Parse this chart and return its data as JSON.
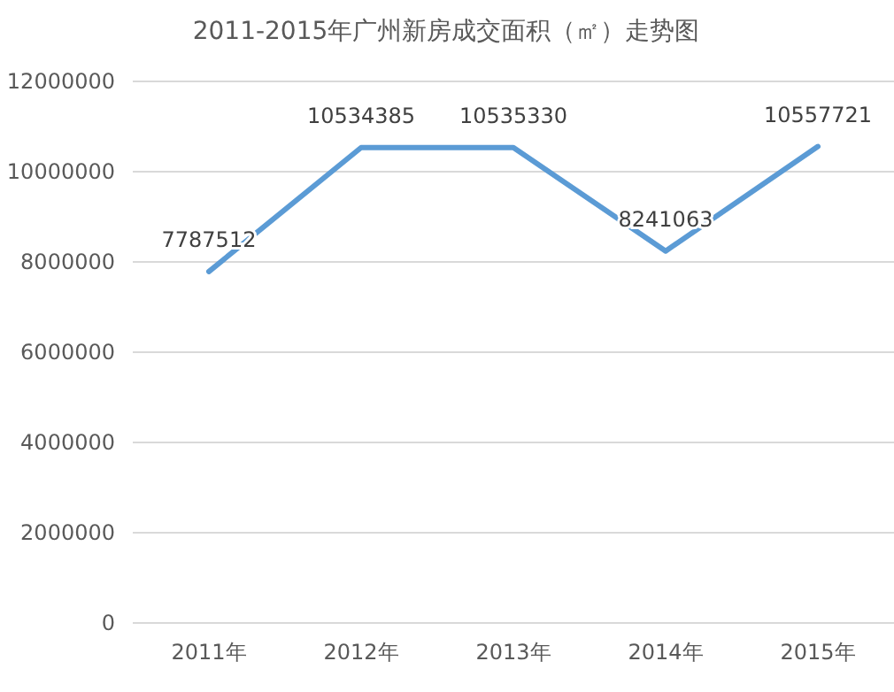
{
  "chart_data": {
    "type": "line",
    "title": "2011-2015年广州新房成交面积（㎡）走势图",
    "categories": [
      "2011年",
      "2012年",
      "2013年",
      "2014年",
      "2015年"
    ],
    "series": [
      {
        "color": "#5b9bd5",
        "values": [
          7787512,
          10534385,
          10535330,
          8241063,
          10557721
        ]
      }
    ],
    "ylim": [
      0,
      12000000
    ],
    "yticks": [
      0,
      2000000,
      4000000,
      6000000,
      8000000,
      10000000,
      12000000
    ],
    "grid": "y",
    "data_labels": true,
    "marker": "none",
    "line_style": "solid"
  }
}
